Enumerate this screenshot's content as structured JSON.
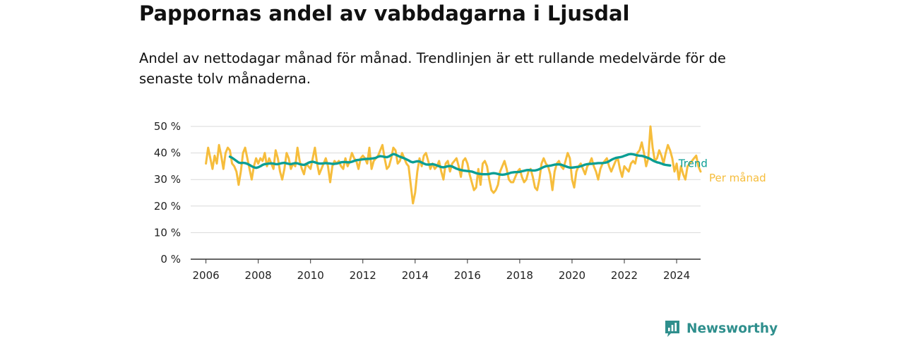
{
  "title": "Pappornas andel av vabbdagarna i Ljusdal",
  "subtitle": "Andel av nettodagar månad för månad. Trendlinjen är ett rullande medelvärde för de senaste tolv månaderna.",
  "brand": {
    "name": "Newsworthy",
    "icon": "newsworthy-logo-icon",
    "color": "#2f8f8d"
  },
  "colors": {
    "monthly": "#f6bd3c",
    "trend": "#0a9e94",
    "grid": "#d9d9d9",
    "axis": "#333333"
  },
  "chart_data": {
    "type": "line",
    "ylim": [
      0,
      50
    ],
    "xlim": [
      "2005-06",
      "2024-12"
    ],
    "y_ticks": [
      "0 %",
      "10 %",
      "20 %",
      "30 %",
      "40 %",
      "50 %"
    ],
    "x_ticks": [
      "2006",
      "2008",
      "2010",
      "2012",
      "2014",
      "2016",
      "2018",
      "2020",
      "2022",
      "2024"
    ],
    "grid": "horizontal",
    "series": [
      {
        "name": "Per månad",
        "color": "#f6bd3c",
        "x_start": "2006-01",
        "frequency": "monthly",
        "values": [
          36,
          42,
          38,
          34,
          39,
          36,
          43,
          39,
          34,
          40,
          42,
          41,
          36,
          35,
          33,
          28,
          33,
          40,
          42,
          38,
          34,
          30,
          35,
          38,
          36,
          38,
          37,
          40,
          35,
          38,
          36,
          34,
          41,
          38,
          33,
          30,
          34,
          40,
          38,
          34,
          36,
          35,
          42,
          37,
          34,
          32,
          36,
          35,
          34,
          38,
          42,
          36,
          32,
          34,
          36,
          38,
          35,
          29,
          35,
          37,
          36,
          37,
          35,
          34,
          38,
          35,
          37,
          40,
          38,
          37,
          34,
          38,
          39,
          38,
          36,
          42,
          34,
          37,
          38,
          39,
          41,
          43,
          38,
          34,
          35,
          38,
          42,
          41,
          36,
          37,
          40,
          38,
          36,
          35,
          28,
          21,
          25,
          33,
          38,
          35,
          39,
          40,
          37,
          34,
          36,
          34,
          35,
          37,
          33,
          30,
          36,
          37,
          33,
          36,
          37,
          38,
          35,
          31,
          37,
          38,
          36,
          32,
          29,
          26,
          27,
          34,
          28,
          36,
          37,
          35,
          30,
          26,
          25,
          26,
          28,
          33,
          35,
          37,
          34,
          30,
          29,
          29,
          31,
          33,
          34,
          31,
          29,
          30,
          33,
          34,
          31,
          27,
          26,
          30,
          36,
          38,
          36,
          35,
          32,
          26,
          33,
          36,
          37,
          35,
          34,
          37,
          40,
          38,
          30,
          27,
          33,
          35,
          36,
          34,
          32,
          35,
          36,
          38,
          35,
          33,
          30,
          34,
          36,
          37,
          38,
          35,
          33,
          35,
          37,
          38,
          34,
          31,
          35,
          34,
          33,
          36,
          37,
          36,
          40,
          41,
          44,
          40,
          35,
          38,
          50,
          42,
          37,
          38,
          41,
          39,
          36,
          40,
          43,
          41,
          38,
          33,
          36,
          30,
          35,
          32,
          30,
          35,
          36,
          37,
          38,
          39,
          35,
          33
        ]
      },
      {
        "name": "Trend",
        "color": "#0a9e94",
        "x_start": "2006-12",
        "frequency": "monthly",
        "values": [
          38.6,
          38.2,
          37.6,
          37,
          36.4,
          36.2,
          36.3,
          36.2,
          35.9,
          35.5,
          35,
          34.6,
          34.4,
          34.6,
          35,
          35.5,
          35.8,
          35.9,
          36,
          36.1,
          36,
          35.8,
          35.8,
          36,
          36.2,
          36.3,
          36.1,
          35.9,
          35.8,
          36,
          36.2,
          36.1,
          35.8,
          35.6,
          35.5,
          35.8,
          36.3,
          36.6,
          36.7,
          36.5,
          36.2,
          36,
          36,
          36.1,
          36.2,
          36.1,
          36,
          35.9,
          35.9,
          36,
          36.2,
          36.5,
          36.6,
          36.6,
          36.5,
          36.5,
          36.7,
          37,
          37.3,
          37.4,
          37.5,
          37.6,
          37.7,
          37.8,
          37.8,
          37.9,
          38,
          38.2,
          38.6,
          38.8,
          38.7,
          38.5,
          38.4,
          38.7,
          39.2,
          39.6,
          39.4,
          39,
          38.6,
          38.3,
          38,
          37.6,
          37.2,
          36.7,
          36.5,
          36.7,
          36.9,
          36.8,
          36.4,
          36,
          35.7,
          35.6,
          35.7,
          35.8,
          35.6,
          35.3,
          35,
          34.7,
          34.6,
          34.8,
          35,
          35.1,
          34.9,
          34.5,
          34.1,
          33.8,
          33.6,
          33.4,
          33.3,
          33.2,
          33.1,
          33,
          32.7,
          32.4,
          32.2,
          32.1,
          32,
          32,
          32,
          32.1,
          32.3,
          32.4,
          32.3,
          32.1,
          31.9,
          31.8,
          31.9,
          32.1,
          32.3,
          32.6,
          32.7,
          32.8,
          32.8,
          32.9,
          33.1,
          33.3,
          33.5,
          33.6,
          33.5,
          33.4,
          33.4,
          33.6,
          33.9,
          34.3,
          34.7,
          35,
          35.1,
          35.2,
          35.4,
          35.6,
          35.7,
          35.7,
          35.6,
          35.3,
          35,
          34.7,
          34.5,
          34.5,
          34.6,
          34.7,
          34.8,
          35,
          35.3,
          35.6,
          35.8,
          35.9,
          35.9,
          36,
          36.1,
          36.2,
          36.2,
          36.2,
          36.3,
          36.5,
          36.9,
          37.4,
          37.8,
          38.1,
          38.3,
          38.4,
          38.6,
          38.9,
          39.2,
          39.5,
          39.6,
          39.5,
          39.3,
          39.1,
          39,
          38.9,
          38.7,
          38.4,
          38.1,
          37.7,
          37.2,
          36.8,
          36.5,
          36.3,
          36,
          35.7,
          35.5,
          35.4,
          35.3
        ]
      }
    ]
  }
}
